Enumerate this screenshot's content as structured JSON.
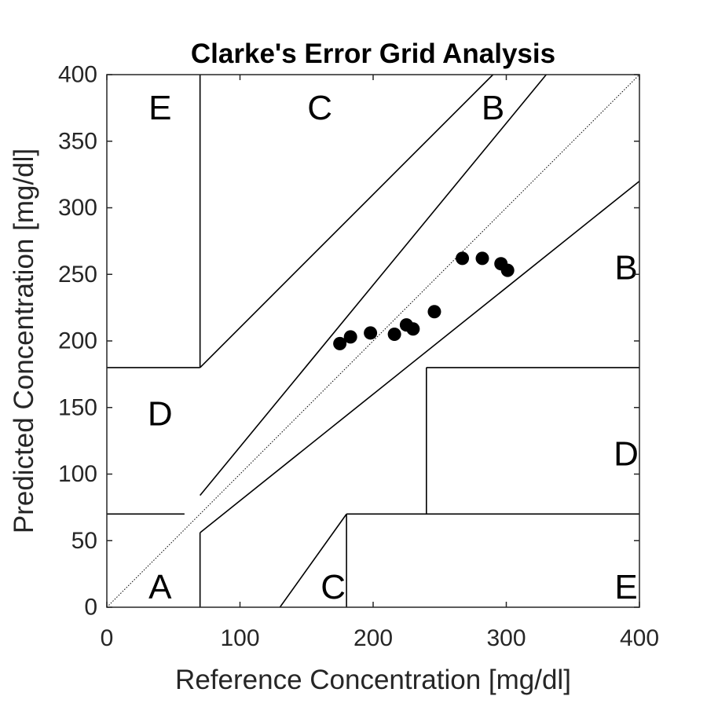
{
  "chart_data": {
    "type": "scatter",
    "title": "Clarke's Error Grid Analysis",
    "xlabel": "Reference Concentration [mg/dl]",
    "ylabel": "Predicted Concentration [mg/dl]",
    "xlim": [
      0,
      400
    ],
    "ylim": [
      0,
      400
    ],
    "xticks": [
      0,
      100,
      200,
      300,
      400
    ],
    "yticks": [
      0,
      50,
      100,
      150,
      200,
      250,
      300,
      350,
      400
    ],
    "grid": false,
    "marker_color": "#000000",
    "points": [
      {
        "x": 175,
        "y": 198
      },
      {
        "x": 183,
        "y": 203
      },
      {
        "x": 198,
        "y": 206
      },
      {
        "x": 216,
        "y": 205
      },
      {
        "x": 225,
        "y": 212
      },
      {
        "x": 230,
        "y": 209
      },
      {
        "x": 246,
        "y": 222
      },
      {
        "x": 267,
        "y": 262
      },
      {
        "x": 282,
        "y": 262
      },
      {
        "x": 296,
        "y": 258
      },
      {
        "x": 301,
        "y": 253
      }
    ],
    "zone_boundaries": [
      [
        [
          70,
          180
        ],
        [
          70,
          400
        ]
      ],
      [
        [
          0,
          180
        ],
        [
          70,
          180
        ]
      ],
      [
        [
          70,
          180
        ],
        [
          290,
          400
        ]
      ],
      [
        [
          0,
          70
        ],
        [
          58.33,
          70
        ]
      ],
      [
        [
          70,
          84
        ],
        [
          330,
          400
        ]
      ],
      [
        [
          70,
          56
        ],
        [
          70,
          0
        ]
      ],
      [
        [
          70,
          56
        ],
        [
          400,
          320
        ]
      ],
      [
        [
          130,
          0
        ],
        [
          180,
          70
        ]
      ],
      [
        [
          180,
          70
        ],
        [
          180,
          0
        ]
      ],
      [
        [
          180,
          70
        ],
        [
          400,
          70
        ]
      ],
      [
        [
          240,
          70
        ],
        [
          240,
          180
        ]
      ],
      [
        [
          240,
          180
        ],
        [
          400,
          180
        ]
      ]
    ],
    "identity_line": [
      [
        0,
        0
      ],
      [
        400,
        400
      ]
    ],
    "zone_labels": [
      {
        "text": "E",
        "x": 40,
        "y": 375
      },
      {
        "text": "C",
        "x": 160,
        "y": 375
      },
      {
        "text": "B",
        "x": 290,
        "y": 375
      },
      {
        "text": "B",
        "x": 390,
        "y": 255
      },
      {
        "text": "D",
        "x": 40,
        "y": 145
      },
      {
        "text": "D",
        "x": 390,
        "y": 115
      },
      {
        "text": "A",
        "x": 40,
        "y": 15
      },
      {
        "text": "C",
        "x": 170,
        "y": 15
      },
      {
        "text": "E",
        "x": 390,
        "y": 15
      }
    ]
  }
}
